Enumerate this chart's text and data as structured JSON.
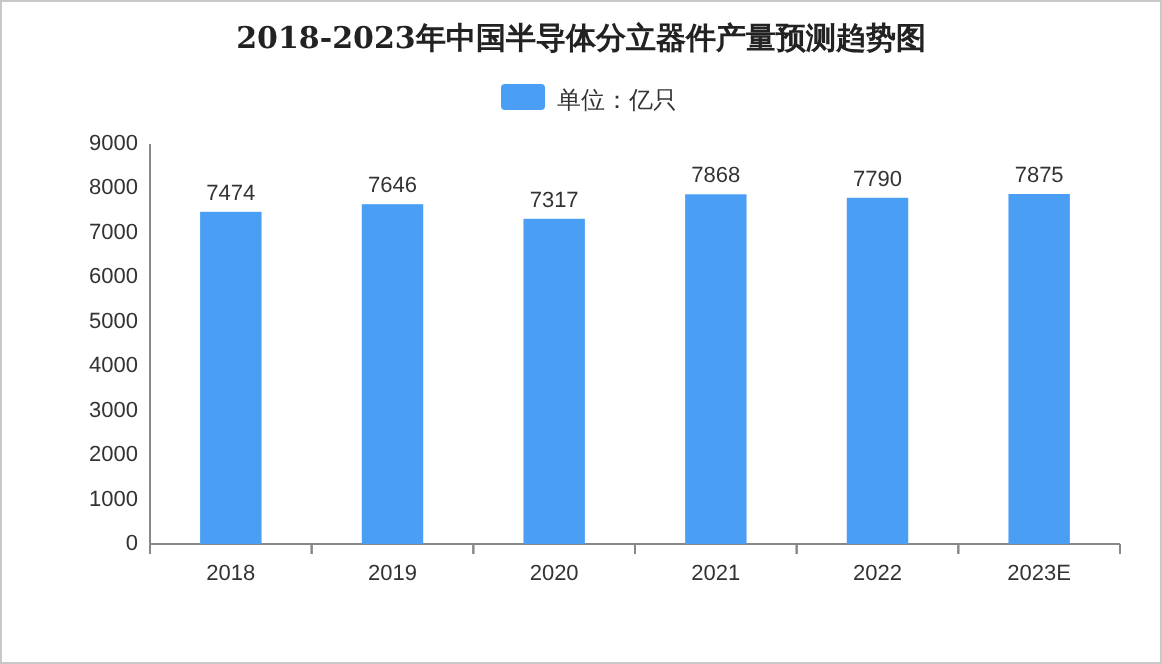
{
  "chart_data": {
    "type": "bar",
    "title": "2018-2023年中国半导体分立器件产量预测趋势图",
    "categories": [
      "2018",
      "2019",
      "2020",
      "2021",
      "2022",
      "2023E"
    ],
    "series": [
      {
        "name": "单位：亿只",
        "color": "#4a9ff5",
        "values": [
          7474,
          7646,
          7317,
          7868,
          7790,
          7875
        ]
      }
    ],
    "ylim": [
      0,
      9000
    ],
    "yticks": [
      0,
      1000,
      2000,
      3000,
      4000,
      5000,
      6000,
      7000,
      8000,
      9000
    ],
    "grid": false,
    "legend": "top",
    "data_labels": true
  }
}
